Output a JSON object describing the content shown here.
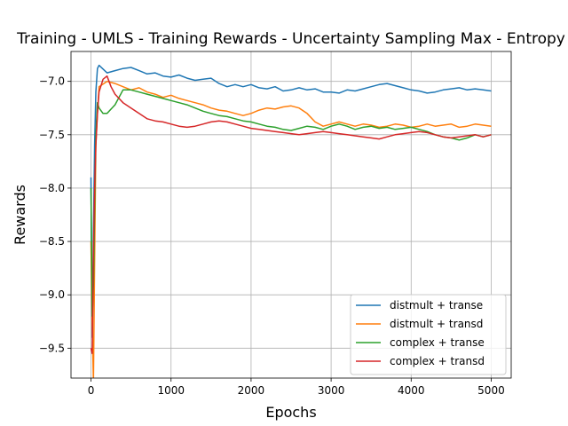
{
  "chart_data": {
    "type": "line",
    "title": "Training - UMLS - Training Rewards - Uncertainty Sampling Max - Entropy",
    "xlabel": "Epochs",
    "ylabel": "Rewards",
    "xlim": [
      -250,
      5250
    ],
    "ylim": [
      -9.78,
      -6.72
    ],
    "xticks": [
      0,
      1000,
      2000,
      3000,
      4000,
      5000
    ],
    "yticks": [
      -9.5,
      -9.0,
      -8.5,
      -8.0,
      -7.5,
      -7.0
    ],
    "xtick_labels": [
      "0",
      "1000",
      "2000",
      "3000",
      "4000",
      "5000"
    ],
    "ytick_labels": [
      "−9.5",
      "−9.0",
      "−8.5",
      "−8.0",
      "−7.5",
      "−7.0"
    ],
    "grid": true,
    "legend_position": "lower-right",
    "series": [
      {
        "name": "distmult + transe",
        "color": "#1f77b4",
        "points": [
          [
            0,
            -7.9
          ],
          [
            15,
            -9.4
          ],
          [
            30,
            -8.4
          ],
          [
            45,
            -7.6
          ],
          [
            60,
            -7.1
          ],
          [
            80,
            -6.88
          ],
          [
            100,
            -6.85
          ],
          [
            200,
            -6.92
          ],
          [
            300,
            -6.9
          ],
          [
            400,
            -6.88
          ],
          [
            500,
            -6.87
          ],
          [
            600,
            -6.9
          ],
          [
            700,
            -6.93
          ],
          [
            800,
            -6.92
          ],
          [
            900,
            -6.95
          ],
          [
            1000,
            -6.96
          ],
          [
            1100,
            -6.94
          ],
          [
            1200,
            -6.97
          ],
          [
            1300,
            -6.99
          ],
          [
            1400,
            -6.98
          ],
          [
            1500,
            -6.97
          ],
          [
            1600,
            -7.02
          ],
          [
            1700,
            -7.05
          ],
          [
            1800,
            -7.03
          ],
          [
            1900,
            -7.05
          ],
          [
            2000,
            -7.03
          ],
          [
            2100,
            -7.06
          ],
          [
            2200,
            -7.07
          ],
          [
            2300,
            -7.05
          ],
          [
            2400,
            -7.09
          ],
          [
            2500,
            -7.08
          ],
          [
            2600,
            -7.06
          ],
          [
            2700,
            -7.08
          ],
          [
            2800,
            -7.07
          ],
          [
            2900,
            -7.1
          ],
          [
            3000,
            -7.1
          ],
          [
            3100,
            -7.11
          ],
          [
            3200,
            -7.08
          ],
          [
            3300,
            -7.09
          ],
          [
            3400,
            -7.07
          ],
          [
            3500,
            -7.05
          ],
          [
            3600,
            -7.03
          ],
          [
            3700,
            -7.02
          ],
          [
            3800,
            -7.04
          ],
          [
            3900,
            -7.06
          ],
          [
            4000,
            -7.08
          ],
          [
            4100,
            -7.09
          ],
          [
            4200,
            -7.11
          ],
          [
            4300,
            -7.1
          ],
          [
            4400,
            -7.08
          ],
          [
            4500,
            -7.07
          ],
          [
            4600,
            -7.06
          ],
          [
            4700,
            -7.08
          ],
          [
            4800,
            -7.07
          ],
          [
            4900,
            -7.08
          ],
          [
            5000,
            -7.09
          ]
        ]
      },
      {
        "name": "distmult + transd",
        "color": "#ff7f0e",
        "points": [
          [
            0,
            -8.5
          ],
          [
            15,
            -9.3
          ],
          [
            30,
            -9.82
          ],
          [
            45,
            -8.7
          ],
          [
            60,
            -7.6
          ],
          [
            80,
            -7.3
          ],
          [
            100,
            -7.05
          ],
          [
            200,
            -7.0
          ],
          [
            300,
            -7.02
          ],
          [
            400,
            -7.05
          ],
          [
            500,
            -7.08
          ],
          [
            600,
            -7.06
          ],
          [
            700,
            -7.1
          ],
          [
            800,
            -7.12
          ],
          [
            900,
            -7.15
          ],
          [
            1000,
            -7.13
          ],
          [
            1100,
            -7.16
          ],
          [
            1200,
            -7.18
          ],
          [
            1300,
            -7.2
          ],
          [
            1400,
            -7.22
          ],
          [
            1500,
            -7.25
          ],
          [
            1600,
            -7.27
          ],
          [
            1700,
            -7.28
          ],
          [
            1800,
            -7.3
          ],
          [
            1900,
            -7.32
          ],
          [
            2000,
            -7.3
          ],
          [
            2100,
            -7.27
          ],
          [
            2200,
            -7.25
          ],
          [
            2300,
            -7.26
          ],
          [
            2400,
            -7.24
          ],
          [
            2500,
            -7.23
          ],
          [
            2600,
            -7.25
          ],
          [
            2700,
            -7.3
          ],
          [
            2800,
            -7.38
          ],
          [
            2900,
            -7.42
          ],
          [
            3000,
            -7.4
          ],
          [
            3100,
            -7.38
          ],
          [
            3200,
            -7.4
          ],
          [
            3300,
            -7.42
          ],
          [
            3400,
            -7.4
          ],
          [
            3500,
            -7.41
          ],
          [
            3600,
            -7.43
          ],
          [
            3700,
            -7.42
          ],
          [
            3800,
            -7.4
          ],
          [
            3900,
            -7.41
          ],
          [
            4000,
            -7.43
          ],
          [
            4100,
            -7.42
          ],
          [
            4200,
            -7.4
          ],
          [
            4300,
            -7.42
          ],
          [
            4400,
            -7.41
          ],
          [
            4500,
            -7.4
          ],
          [
            4600,
            -7.43
          ],
          [
            4700,
            -7.42
          ],
          [
            4800,
            -7.4
          ],
          [
            4900,
            -7.41
          ],
          [
            5000,
            -7.42
          ]
        ]
      },
      {
        "name": "complex + transe",
        "color": "#2ca02c",
        "points": [
          [
            0,
            -8.0
          ],
          [
            15,
            -9.2
          ],
          [
            30,
            -8.9
          ],
          [
            45,
            -8.2
          ],
          [
            60,
            -7.5
          ],
          [
            80,
            -7.2
          ],
          [
            100,
            -7.25
          ],
          [
            150,
            -7.3
          ],
          [
            200,
            -7.3
          ],
          [
            300,
            -7.22
          ],
          [
            400,
            -7.08
          ],
          [
            500,
            -7.08
          ],
          [
            600,
            -7.1
          ],
          [
            700,
            -7.12
          ],
          [
            800,
            -7.14
          ],
          [
            900,
            -7.16
          ],
          [
            1000,
            -7.18
          ],
          [
            1100,
            -7.2
          ],
          [
            1200,
            -7.22
          ],
          [
            1300,
            -7.25
          ],
          [
            1400,
            -7.28
          ],
          [
            1500,
            -7.3
          ],
          [
            1600,
            -7.32
          ],
          [
            1700,
            -7.33
          ],
          [
            1800,
            -7.35
          ],
          [
            1900,
            -7.37
          ],
          [
            2000,
            -7.38
          ],
          [
            2100,
            -7.4
          ],
          [
            2200,
            -7.42
          ],
          [
            2300,
            -7.43
          ],
          [
            2400,
            -7.45
          ],
          [
            2500,
            -7.46
          ],
          [
            2600,
            -7.44
          ],
          [
            2700,
            -7.42
          ],
          [
            2800,
            -7.43
          ],
          [
            2900,
            -7.45
          ],
          [
            3000,
            -7.42
          ],
          [
            3100,
            -7.4
          ],
          [
            3200,
            -7.42
          ],
          [
            3300,
            -7.45
          ],
          [
            3400,
            -7.43
          ],
          [
            3500,
            -7.42
          ],
          [
            3600,
            -7.44
          ],
          [
            3700,
            -7.43
          ],
          [
            3800,
            -7.45
          ],
          [
            3900,
            -7.44
          ],
          [
            4000,
            -7.43
          ],
          [
            4100,
            -7.45
          ],
          [
            4200,
            -7.47
          ],
          [
            4300,
            -7.5
          ],
          [
            4400,
            -7.52
          ],
          [
            4500,
            -7.53
          ],
          [
            4600,
            -7.55
          ],
          [
            4700,
            -7.53
          ],
          [
            4800,
            -7.5
          ],
          [
            4900,
            -7.52
          ],
          [
            5000,
            -7.5
          ]
        ]
      },
      {
        "name": "complex + transd",
        "color": "#d62728",
        "points": [
          [
            0,
            -9.5
          ],
          [
            15,
            -9.55
          ],
          [
            30,
            -8.6
          ],
          [
            45,
            -8.0
          ],
          [
            60,
            -7.6
          ],
          [
            80,
            -7.3
          ],
          [
            100,
            -7.1
          ],
          [
            150,
            -6.98
          ],
          [
            200,
            -6.95
          ],
          [
            250,
            -7.05
          ],
          [
            300,
            -7.12
          ],
          [
            400,
            -7.2
          ],
          [
            500,
            -7.25
          ],
          [
            600,
            -7.3
          ],
          [
            700,
            -7.35
          ],
          [
            800,
            -7.37
          ],
          [
            900,
            -7.38
          ],
          [
            1000,
            -7.4
          ],
          [
            1100,
            -7.42
          ],
          [
            1200,
            -7.43
          ],
          [
            1300,
            -7.42
          ],
          [
            1400,
            -7.4
          ],
          [
            1500,
            -7.38
          ],
          [
            1600,
            -7.37
          ],
          [
            1700,
            -7.38
          ],
          [
            1800,
            -7.4
          ],
          [
            1900,
            -7.42
          ],
          [
            2000,
            -7.44
          ],
          [
            2100,
            -7.45
          ],
          [
            2200,
            -7.46
          ],
          [
            2300,
            -7.47
          ],
          [
            2400,
            -7.48
          ],
          [
            2500,
            -7.49
          ],
          [
            2600,
            -7.5
          ],
          [
            2700,
            -7.49
          ],
          [
            2800,
            -7.48
          ],
          [
            2900,
            -7.47
          ],
          [
            3000,
            -7.48
          ],
          [
            3100,
            -7.49
          ],
          [
            3200,
            -7.5
          ],
          [
            3300,
            -7.51
          ],
          [
            3400,
            -7.52
          ],
          [
            3500,
            -7.53
          ],
          [
            3600,
            -7.54
          ],
          [
            3700,
            -7.52
          ],
          [
            3800,
            -7.5
          ],
          [
            3900,
            -7.49
          ],
          [
            4000,
            -7.48
          ],
          [
            4100,
            -7.47
          ],
          [
            4200,
            -7.48
          ],
          [
            4300,
            -7.5
          ],
          [
            4400,
            -7.52
          ],
          [
            4500,
            -7.53
          ],
          [
            4600,
            -7.52
          ],
          [
            4700,
            -7.51
          ],
          [
            4800,
            -7.5
          ],
          [
            4900,
            -7.52
          ],
          [
            5000,
            -7.5
          ]
        ]
      }
    ]
  }
}
